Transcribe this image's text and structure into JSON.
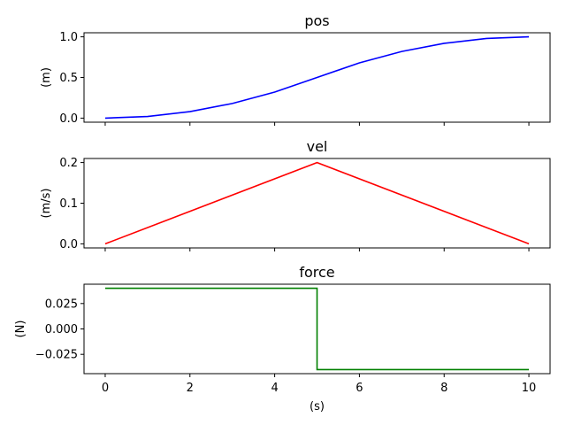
{
  "chart_data": [
    {
      "type": "line",
      "title": "pos",
      "ylabel": "(m)",
      "xlabel": "",
      "color": "#0000ff",
      "x": [
        0,
        1,
        2,
        3,
        4,
        5,
        6,
        7,
        8,
        9,
        10
      ],
      "y": [
        0.0,
        0.02,
        0.08,
        0.18,
        0.32,
        0.5,
        0.68,
        0.82,
        0.92,
        0.98,
        1.0
      ],
      "xlim": [
        -0.5,
        10.5
      ],
      "ylim": [
        -0.05,
        1.05
      ],
      "yticks": [
        0.0,
        0.5,
        1.0
      ],
      "ytick_labels": [
        "0.0",
        "0.5",
        "1.0"
      ],
      "xticks": [
        0,
        2,
        4,
        6,
        8,
        10
      ],
      "show_xtick_labels": false,
      "grid": false,
      "step": false
    },
    {
      "type": "line",
      "title": "vel",
      "ylabel": "(m/s)",
      "xlabel": "",
      "color": "#ff0000",
      "x": [
        0,
        5,
        10
      ],
      "y": [
        0.0,
        0.2,
        0.0
      ],
      "xlim": [
        -0.5,
        10.5
      ],
      "ylim": [
        -0.01,
        0.21
      ],
      "yticks": [
        0.0,
        0.1,
        0.2
      ],
      "ytick_labels": [
        "0.0",
        "0.1",
        "0.2"
      ],
      "xticks": [
        0,
        2,
        4,
        6,
        8,
        10
      ],
      "show_xtick_labels": false,
      "grid": false,
      "step": false
    },
    {
      "type": "line",
      "title": "force",
      "ylabel": "(N)",
      "xlabel": "(s)",
      "color": "#008000",
      "x": [
        0,
        5,
        5,
        10
      ],
      "y": [
        0.04,
        0.04,
        -0.04,
        -0.04
      ],
      "xlim": [
        -0.5,
        10.5
      ],
      "ylim": [
        -0.044,
        0.044
      ],
      "yticks": [
        0.025,
        0.0,
        -0.025
      ],
      "ytick_labels": [
        "0.025",
        "0.000",
        "−0.025"
      ],
      "xticks": [
        0,
        2,
        4,
        6,
        8,
        10
      ],
      "xtick_labels": [
        "0",
        "2",
        "4",
        "6",
        "8",
        "10"
      ],
      "show_xtick_labels": true,
      "grid": false,
      "step": true
    }
  ]
}
